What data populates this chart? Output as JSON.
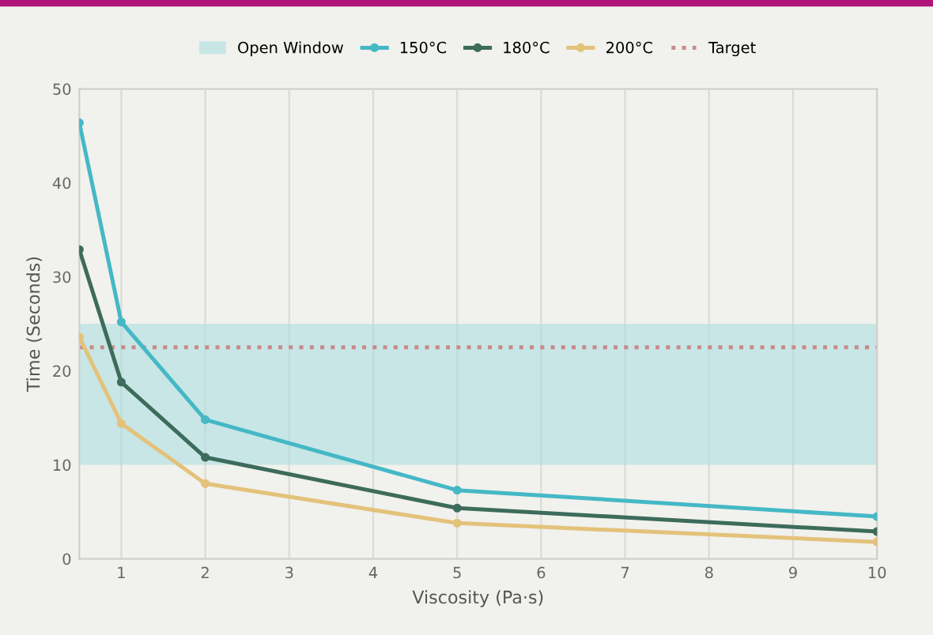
{
  "chart_data": {
    "type": "line",
    "xlabel": "Viscosity (Pa·s)",
    "ylabel": "Time (Seconds)",
    "x": [
      0.5,
      1,
      2,
      5,
      10
    ],
    "series": [
      {
        "name": "150°C",
        "color": "#45b8c6",
        "values": [
          46.4,
          25.2,
          14.8,
          7.3,
          4.5
        ]
      },
      {
        "name": "180°C",
        "color": "#3d6b5c",
        "values": [
          32.9,
          18.8,
          10.8,
          5.4,
          2.9
        ]
      },
      {
        "name": "200°C",
        "color": "#e3c27a",
        "values": [
          23.6,
          14.4,
          8,
          3.8,
          1.8
        ]
      }
    ],
    "bands": [
      {
        "axis": "y",
        "from": 10,
        "to": 25,
        "label": "Open Window",
        "color": "#a6dde0"
      }
    ],
    "ref_lines": [
      {
        "axis": "y",
        "value": 22.5,
        "label": "Target",
        "color": "#c98a8a",
        "line_style": "dotted"
      }
    ],
    "xlim": [
      0.5,
      10
    ],
    "xticks": [
      1,
      2,
      3,
      4,
      5,
      6,
      7,
      8,
      9,
      10
    ],
    "ylim": [
      0,
      50
    ],
    "yticks": [
      0,
      10,
      20,
      30,
      40,
      50
    ],
    "grid": "x",
    "legend": "top",
    "marker": "circle",
    "line_style": "solid"
  }
}
